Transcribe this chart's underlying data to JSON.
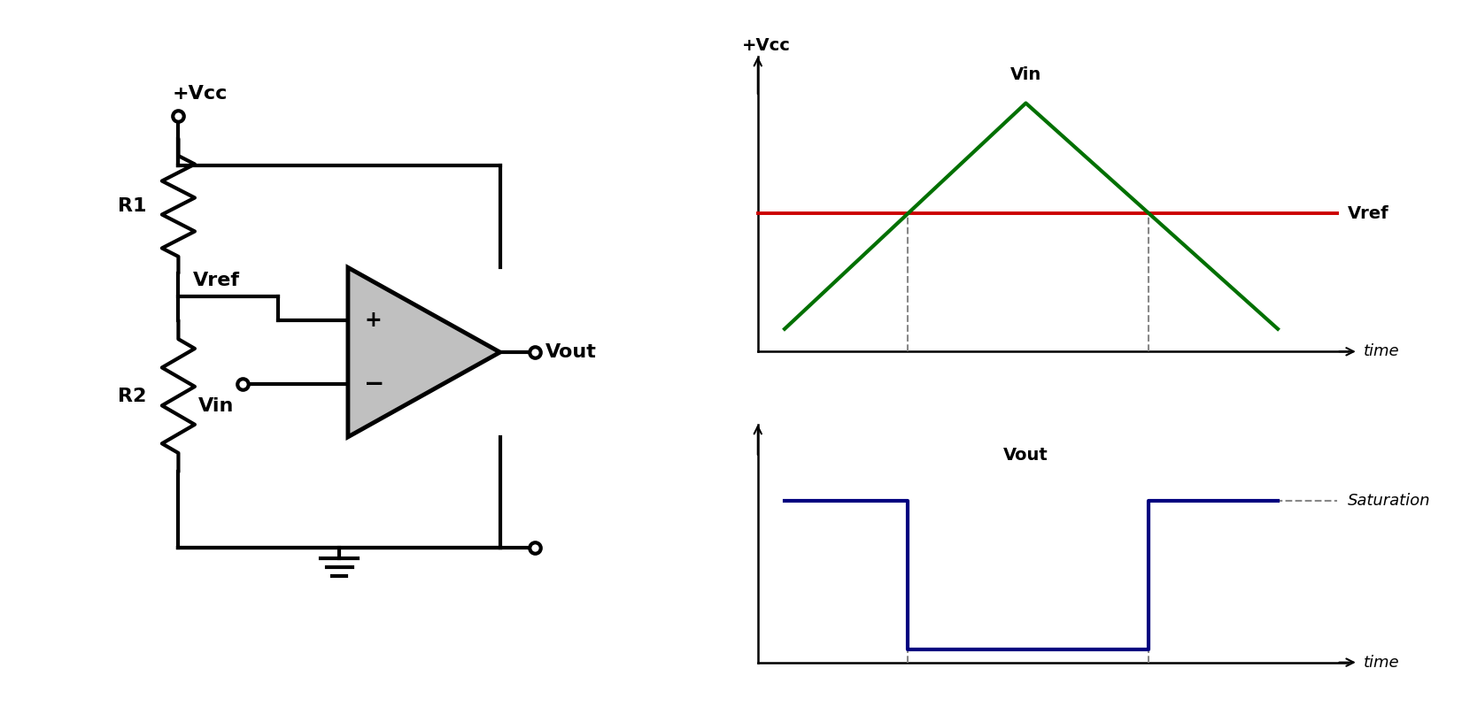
{
  "bg_color": "#ffffff",
  "line_color": "#000000",
  "line_width": 3.0,
  "opamp_fill": "#c0c0c0",
  "vcc_label": "+Vcc",
  "r1_label": "R1",
  "r2_label": "R2",
  "vref_label": "Vref",
  "vin_label": "Vin",
  "vout_label": "Vout",
  "plus_label": "+",
  "minus_label": "−",
  "time_label": "time",
  "vcc2_label": "+Vcc",
  "vin_plot_label": "Vin",
  "vref_plot_label": "Vref",
  "vout_plot_label": "Vout",
  "saturation_label": "Saturation",
  "vin_color": "#007000",
  "vref_color": "#cc0000",
  "vout_color": "#00007f",
  "dashed_color": "#888888",
  "font_size_large": 16,
  "font_size_medium": 14,
  "font_size_small": 13
}
